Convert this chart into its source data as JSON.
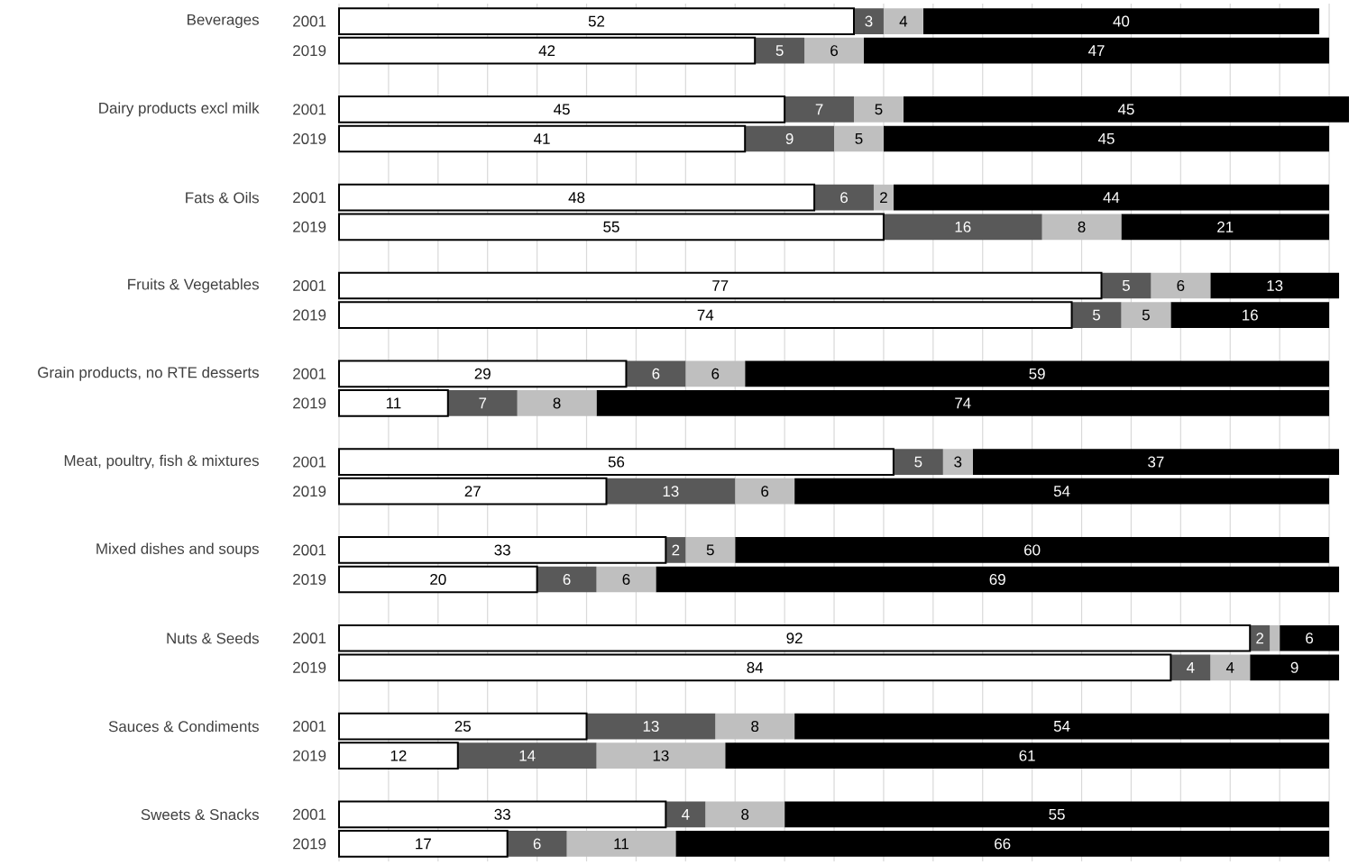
{
  "chart_data": {
    "type": "bar",
    "orientation": "horizontal",
    "stacked": true,
    "categories": [
      "2001",
      "2019",
      "2001",
      "2019",
      "2001",
      "2019",
      "2001",
      "2019",
      "2001",
      "2019",
      "2001",
      "2019",
      "2001",
      "2019",
      "2001",
      "2019",
      "2001",
      "2019",
      "2001",
      "2019"
    ],
    "annotations": [
      "Beverages",
      "Dairy products excl milk",
      "Fats & Oils",
      "Fruits & Vegetables",
      "Grain products, no RTE desserts",
      "Meat, poultry, fish & mixtures",
      "Mixed dishes and soups",
      "Nuts & Seeds",
      "Sauces & Condiments",
      "Sweets & Snacks"
    ],
    "series": [
      {
        "color": "#ffffff",
        "values": [
          52,
          42,
          45,
          41,
          48,
          55,
          77,
          74,
          29,
          11,
          56,
          27,
          33,
          20,
          92,
          84,
          25,
          12,
          33,
          17
        ],
        "value_labels": [
          "52",
          "42",
          "45",
          "41",
          "48",
          "55",
          "77",
          "74",
          "29",
          "11",
          "56",
          "27",
          "33",
          "20",
          "92",
          "84",
          "25",
          "12",
          "33",
          "17"
        ]
      },
      {
        "color": "#595959",
        "values": [
          3,
          5,
          7,
          9,
          6,
          16,
          5,
          5,
          6,
          7,
          5,
          13,
          2,
          6,
          2,
          4,
          13,
          14,
          4,
          6
        ],
        "value_labels": [
          "3",
          "5",
          "7",
          "9",
          "6",
          "16",
          "5",
          "5",
          "6",
          "7",
          "5",
          "13",
          "2",
          "6",
          "2",
          "4",
          "13",
          "14",
          "4",
          "6"
        ]
      },
      {
        "color": "#bfbfbf",
        "values": [
          4,
          6,
          5,
          5,
          2,
          8,
          6,
          5,
          6,
          8,
          3,
          6,
          5,
          6,
          1,
          4,
          8,
          13,
          8,
          11
        ],
        "value_labels": [
          "4",
          "6",
          "5",
          "5",
          "2",
          "8",
          "6",
          "5",
          "6",
          "8",
          "3",
          "6",
          "5",
          "6",
          null,
          "4",
          "8",
          "13",
          "8",
          "11"
        ]
      },
      {
        "color": "#000000",
        "values": [
          40,
          47,
          45,
          45,
          44,
          21,
          13,
          16,
          59,
          74,
          37,
          54,
          60,
          69,
          6,
          9,
          54,
          61,
          55,
          66
        ],
        "value_labels": [
          "40",
          "47",
          "45",
          "45",
          "44",
          "21",
          "13",
          "16",
          "59",
          "74",
          "37",
          "54",
          "60",
          "69",
          "6",
          "9",
          "54",
          "61",
          "55",
          "66"
        ]
      }
    ],
    "grid": "x"
  }
}
